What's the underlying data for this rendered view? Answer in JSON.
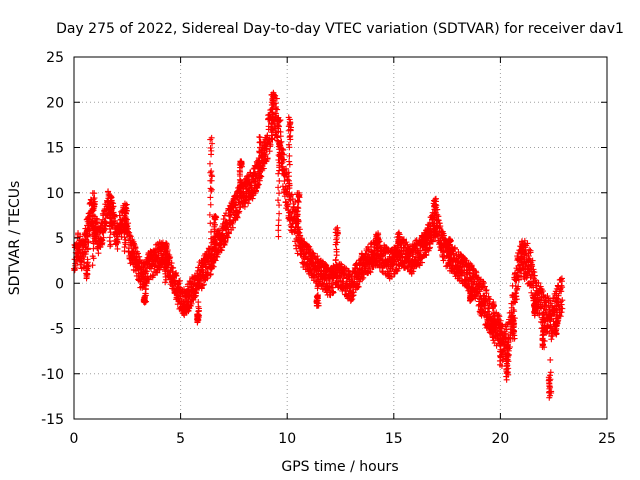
{
  "chart_data": {
    "type": "scatter",
    "title": "Day 275 of 2022, Sidereal Day-to-day VTEC variation (SDTVAR) for receiver dav1",
    "xlabel": "GPS time / hours",
    "ylabel": "SDTVAR / TECUs",
    "xlim": [
      0,
      25
    ],
    "ylim": [
      -15,
      25
    ],
    "xticks": [
      "0",
      "5",
      "10",
      "15",
      "20",
      "25"
    ],
    "yticks": [
      "25",
      "20",
      "15",
      "10",
      "5",
      "0",
      "-5",
      "-10",
      "-15"
    ],
    "grid": true,
    "marker": "plus",
    "color": "#ff0000",
    "trace": [
      [
        0.0,
        2.5
      ],
      [
        0.2,
        4.0
      ],
      [
        0.4,
        3.0
      ],
      [
        0.6,
        5.5
      ],
      [
        0.8,
        8.0
      ],
      [
        1.0,
        6.0
      ],
      [
        1.2,
        4.5
      ],
      [
        1.4,
        6.5
      ],
      [
        1.6,
        9.0
      ],
      [
        1.8,
        7.5
      ],
      [
        2.0,
        5.0
      ],
      [
        2.2,
        6.5
      ],
      [
        2.4,
        7.5
      ],
      [
        2.6,
        4.0
      ],
      [
        2.8,
        3.0
      ],
      [
        3.0,
        2.0
      ],
      [
        3.2,
        0.5
      ],
      [
        3.4,
        1.5
      ],
      [
        3.6,
        2.0
      ],
      [
        3.8,
        2.5
      ],
      [
        4.0,
        3.0
      ],
      [
        4.2,
        3.5
      ],
      [
        4.4,
        2.0
      ],
      [
        4.6,
        1.0
      ],
      [
        4.8,
        -0.5
      ],
      [
        5.0,
        -1.5
      ],
      [
        5.2,
        -2.0
      ],
      [
        5.4,
        -1.5
      ],
      [
        5.6,
        -0.5
      ],
      [
        5.8,
        0.5
      ],
      [
        6.0,
        1.0
      ],
      [
        6.2,
        2.0
      ],
      [
        6.4,
        2.5
      ],
      [
        6.6,
        3.5
      ],
      [
        6.8,
        4.5
      ],
      [
        7.0,
        5.5
      ],
      [
        7.2,
        6.5
      ],
      [
        7.4,
        7.5
      ],
      [
        7.6,
        8.5
      ],
      [
        7.8,
        9.5
      ],
      [
        8.0,
        10.0
      ],
      [
        8.2,
        10.5
      ],
      [
        8.4,
        11.0
      ],
      [
        8.6,
        12.0
      ],
      [
        8.8,
        13.5
      ],
      [
        9.0,
        15.0
      ],
      [
        9.2,
        17.0
      ],
      [
        9.4,
        19.0
      ],
      [
        9.6,
        17.5
      ],
      [
        9.8,
        13.0
      ],
      [
        10.0,
        10.0
      ],
      [
        10.2,
        8.0
      ],
      [
        10.4,
        6.5
      ],
      [
        10.6,
        4.5
      ],
      [
        10.8,
        3.0
      ],
      [
        11.0,
        2.5
      ],
      [
        11.2,
        2.0
      ],
      [
        11.4,
        1.5
      ],
      [
        11.6,
        1.0
      ],
      [
        11.8,
        0.5
      ],
      [
        12.0,
        0.0
      ],
      [
        12.2,
        0.5
      ],
      [
        12.4,
        1.0
      ],
      [
        12.6,
        0.5
      ],
      [
        12.8,
        0.0
      ],
      [
        13.0,
        -0.5
      ],
      [
        13.2,
        0.5
      ],
      [
        13.4,
        1.5
      ],
      [
        13.6,
        2.0
      ],
      [
        13.8,
        2.5
      ],
      [
        14.0,
        3.0
      ],
      [
        14.2,
        3.5
      ],
      [
        14.4,
        3.0
      ],
      [
        14.6,
        2.5
      ],
      [
        14.8,
        2.0
      ],
      [
        15.0,
        2.5
      ],
      [
        15.2,
        3.0
      ],
      [
        15.4,
        3.5
      ],
      [
        15.6,
        3.0
      ],
      [
        15.8,
        2.5
      ],
      [
        16.0,
        3.0
      ],
      [
        16.2,
        3.5
      ],
      [
        16.4,
        4.0
      ],
      [
        16.6,
        5.0
      ],
      [
        16.8,
        6.0
      ],
      [
        17.0,
        7.0
      ],
      [
        17.2,
        5.0
      ],
      [
        17.4,
        3.5
      ],
      [
        17.6,
        3.0
      ],
      [
        17.8,
        2.5
      ],
      [
        18.0,
        2.0
      ],
      [
        18.2,
        1.5
      ],
      [
        18.4,
        1.0
      ],
      [
        18.6,
        0.5
      ],
      [
        18.8,
        0.0
      ],
      [
        19.0,
        -1.0
      ],
      [
        19.2,
        -2.0
      ],
      [
        19.4,
        -3.0
      ],
      [
        19.6,
        -4.0
      ],
      [
        19.8,
        -5.0
      ],
      [
        20.0,
        -6.0
      ],
      [
        20.2,
        -7.0
      ],
      [
        20.4,
        -6.0
      ],
      [
        20.6,
        -2.0
      ],
      [
        20.8,
        1.0
      ],
      [
        21.0,
        3.0
      ],
      [
        21.2,
        2.5
      ],
      [
        21.4,
        1.5
      ],
      [
        21.6,
        -0.5
      ],
      [
        21.8,
        -2.0
      ],
      [
        22.0,
        -3.0
      ],
      [
        22.2,
        -3.5
      ],
      [
        22.4,
        -4.0
      ],
      [
        22.6,
        -3.0
      ],
      [
        22.8,
        -1.5
      ]
    ],
    "peaks": [
      [
        0.6,
        2.0,
        0.5,
        5.5
      ],
      [
        0.9,
        9.8,
        2.0,
        8.0
      ],
      [
        1.7,
        9.6,
        4.0,
        7.0
      ],
      [
        2.4,
        8.5,
        3.5,
        6.0
      ],
      [
        3.3,
        -2.0,
        -1.5,
        0.0
      ],
      [
        4.3,
        4.5,
        0.0,
        3.0
      ],
      [
        5.3,
        -3.0,
        -2.5,
        -1.5
      ],
      [
        5.8,
        -4.2,
        -3.5,
        -2.0
      ],
      [
        6.4,
        16.0,
        3.0,
        10.0
      ],
      [
        6.6,
        7.5,
        5.0,
        7.0
      ],
      [
        7.8,
        13.5,
        10.0,
        13.0
      ],
      [
        8.7,
        16.0,
        12.0,
        15.0
      ],
      [
        9.3,
        21.0,
        16.0,
        20.0
      ],
      [
        9.6,
        15.0,
        5.0,
        12.0
      ],
      [
        10.1,
        18.5,
        10.0,
        16.0
      ],
      [
        10.5,
        10.0,
        5.0,
        9.0
      ],
      [
        11.4,
        -2.5,
        -1.5,
        0.5
      ],
      [
        12.3,
        6.0,
        1.0,
        4.0
      ],
      [
        14.2,
        5.5,
        2.0,
        4.5
      ],
      [
        15.2,
        5.5,
        2.5,
        4.5
      ],
      [
        16.5,
        5.5,
        3.5,
        5.0
      ],
      [
        16.9,
        9.2,
        6.0,
        8.5
      ],
      [
        17.6,
        5.0,
        3.0,
        4.5
      ],
      [
        18.6,
        -2.0,
        -1.0,
        0.5
      ],
      [
        19.6,
        -5.5,
        -4.0,
        -2.0
      ],
      [
        20.0,
        -9.0,
        -6.0,
        -4.5
      ],
      [
        20.3,
        -10.5,
        -8.0,
        -5.0
      ],
      [
        20.6,
        -6.0,
        -4.0,
        -2.0
      ],
      [
        21.0,
        4.2,
        2.5,
        3.5
      ],
      [
        21.6,
        -3.5,
        -2.5,
        -1.0
      ],
      [
        22.0,
        -7.0,
        -5.0,
        -3.5
      ],
      [
        22.3,
        -12.5,
        -10.5,
        -8.0
      ],
      [
        22.6,
        -5.5,
        -4.0,
        -2.5
      ]
    ]
  }
}
